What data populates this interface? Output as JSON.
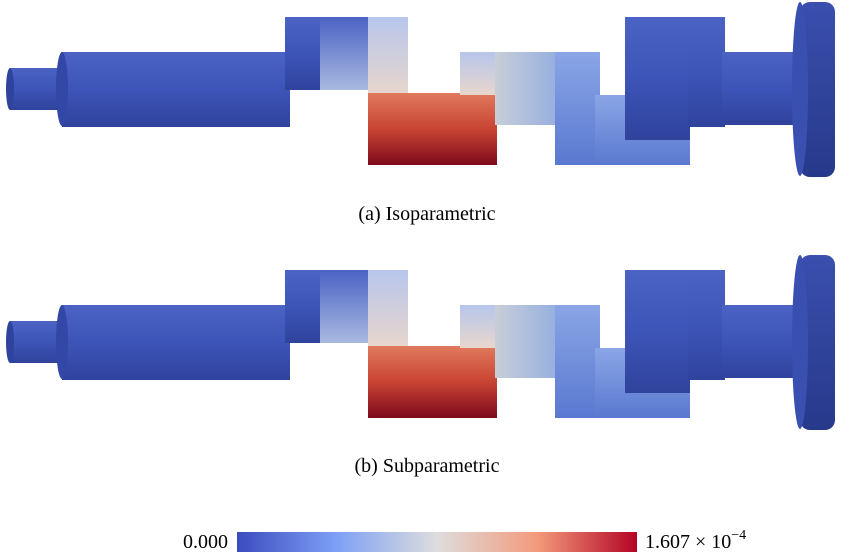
{
  "figures": [
    {
      "caption": "(a) Isoparametric"
    },
    {
      "caption": "(b) Subparametric"
    }
  ],
  "colorbar": {
    "min_label": "0.000",
    "max_label": {
      "base": "1.607 × 10",
      "exponent": "−4"
    }
  }
}
